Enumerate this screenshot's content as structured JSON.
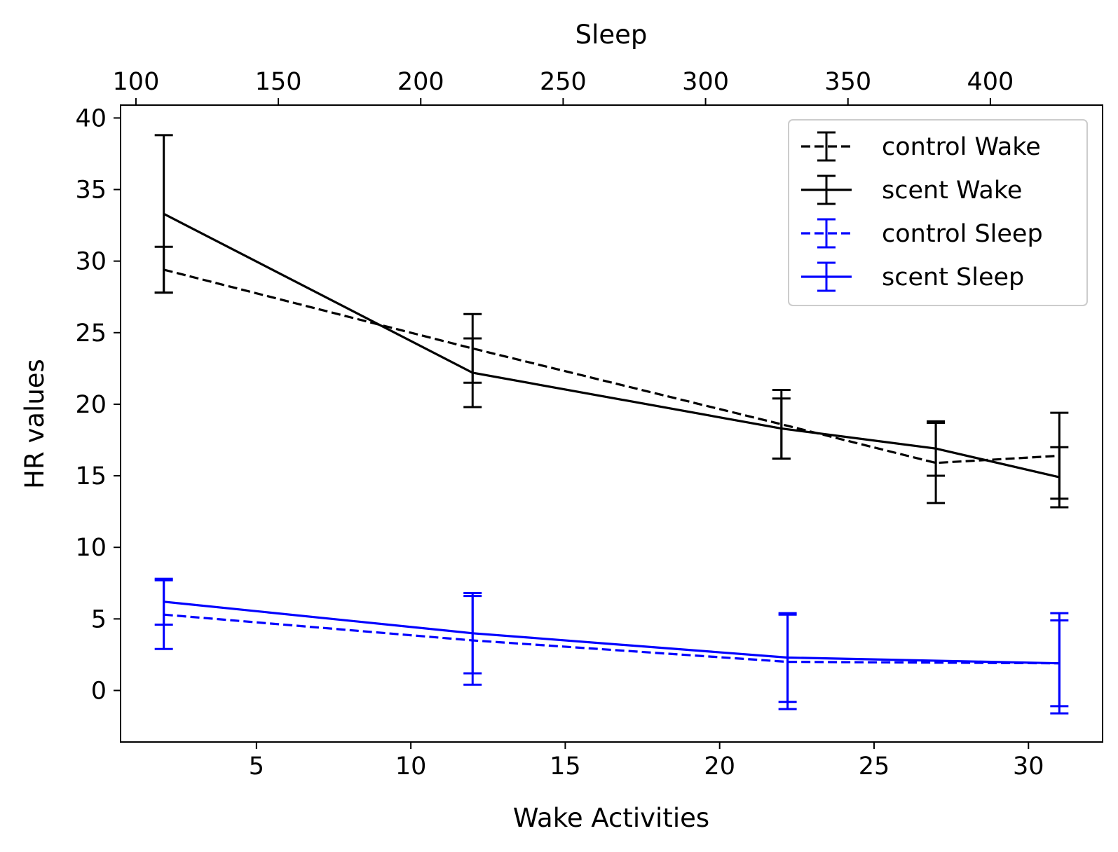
{
  "chart_data": {
    "type": "line",
    "title": "",
    "xlabel": "Wake Activities",
    "x2label": "Sleep",
    "ylabel": "HR values",
    "xlim": [
      0.6,
      32.4
    ],
    "x2lim": [
      94.6,
      439.4
    ],
    "ylim": [
      -3.6,
      40.9
    ],
    "xticks": [
      5,
      10,
      15,
      20,
      25,
      30
    ],
    "x2ticks": [
      100,
      150,
      200,
      250,
      300,
      350,
      400
    ],
    "yticks": [
      0,
      5,
      10,
      15,
      20,
      25,
      30,
      35,
      40
    ],
    "grid": false,
    "legend": {
      "position": "top-right"
    },
    "series": [
      {
        "name": "control Wake",
        "axis": "bottom",
        "style": "dashed",
        "color": "#000000",
        "x": [
          2,
          12,
          22,
          27,
          31
        ],
        "y": [
          29.4,
          23.9,
          18.6,
          15.9,
          16.4
        ],
        "err": [
          1.6,
          2.4,
          2.4,
          2.8,
          3.0
        ]
      },
      {
        "name": "scent Wake",
        "axis": "bottom",
        "style": "solid",
        "color": "#000000",
        "x": [
          2,
          12,
          22,
          27,
          31
        ],
        "y": [
          33.3,
          22.2,
          18.3,
          16.9,
          14.9
        ],
        "err": [
          5.5,
          2.4,
          2.1,
          1.9,
          2.1
        ]
      },
      {
        "name": "control Sleep",
        "axis": "bottom",
        "style": "dashed",
        "color": "#0000ff",
        "x": [
          2,
          12,
          22.2,
          31
        ],
        "y": [
          5.3,
          3.5,
          2.0,
          1.9
        ],
        "err": [
          2.4,
          3.1,
          3.3,
          3.0
        ]
      },
      {
        "name": "scent Sleep",
        "axis": "bottom",
        "style": "solid",
        "color": "#0000ff",
        "x": [
          2,
          12,
          22.2,
          31
        ],
        "y": [
          6.2,
          4.0,
          2.3,
          1.9
        ],
        "err": [
          1.6,
          2.8,
          3.1,
          3.5
        ]
      }
    ]
  }
}
